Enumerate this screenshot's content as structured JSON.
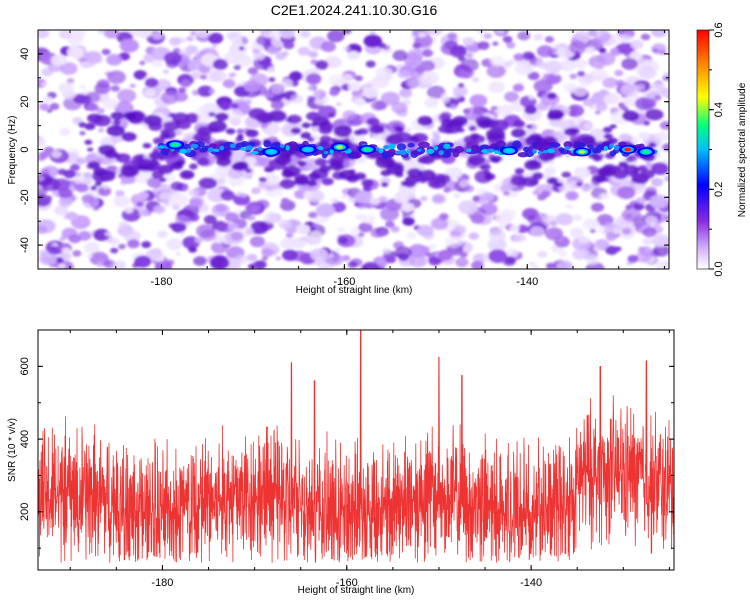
{
  "title": "C2E1.2024.241.10.30.G16",
  "chart_data": [
    {
      "type": "heatmap",
      "xlabel": "Height of straight line (km)",
      "ylabel": "Frequency (Hz)",
      "xlim": [
        -193.5,
        -124.5
      ],
      "ylim": [
        -50,
        50
      ],
      "xticks": [
        -180,
        -160,
        -140
      ],
      "yticks": [
        -40,
        -20,
        0,
        20,
        40
      ],
      "colorbar": {
        "label": "Normalized spectral amplitude",
        "range": [
          0.0,
          0.6
        ],
        "ticks": [
          "0.0",
          "0.2",
          "0.4",
          "0.6"
        ],
        "colors": [
          "#e8d8ff",
          "#8a2be2",
          "#0000ff",
          "#00bfff",
          "#00ff7f",
          "#adff2f",
          "#ffff00",
          "#ff8c00",
          "#ff0000"
        ]
      },
      "band": {
        "center_frequency_hz": 0,
        "x_range": [
          -180,
          -126
        ],
        "peaks": [
          {
            "x": -178.5,
            "y": 2,
            "value": 0.26
          },
          {
            "x": -168,
            "y": -1,
            "value": 0.22
          },
          {
            "x": -164,
            "y": 0,
            "value": 0.24
          },
          {
            "x": -160.5,
            "y": 1,
            "value": 0.3
          },
          {
            "x": -157.5,
            "y": 0,
            "value": 0.28
          },
          {
            "x": -142,
            "y": -0.5,
            "value": 0.24
          },
          {
            "x": -134,
            "y": -1,
            "value": 0.3
          },
          {
            "x": -129,
            "y": 0,
            "value": 0.5
          },
          {
            "x": -127,
            "y": -1,
            "value": 0.28
          }
        ]
      }
    },
    {
      "type": "line",
      "xlabel": "Height of straight line (km)",
      "ylabel": "SNR (10 * v/v)",
      "xlim": [
        -193.5,
        -124.5
      ],
      "ylim": [
        40,
        700
      ],
      "xticks": [
        -180,
        -160,
        -140
      ],
      "yticks": [
        200,
        400,
        600
      ],
      "color": "#ee3333",
      "series_summary": {
        "baseline_mean": 220,
        "typical_low": 60,
        "typical_high": 450,
        "peaks": [
          {
            "x": -158.5,
            "y": 700
          },
          {
            "x": -150,
            "y": 625
          },
          {
            "x": -166,
            "y": 610
          },
          {
            "x": -127.5,
            "y": 615
          },
          {
            "x": -132.5,
            "y": 600
          },
          {
            "x": -147.5,
            "y": 575
          },
          {
            "x": -163.5,
            "y": 560
          }
        ]
      }
    }
  ]
}
